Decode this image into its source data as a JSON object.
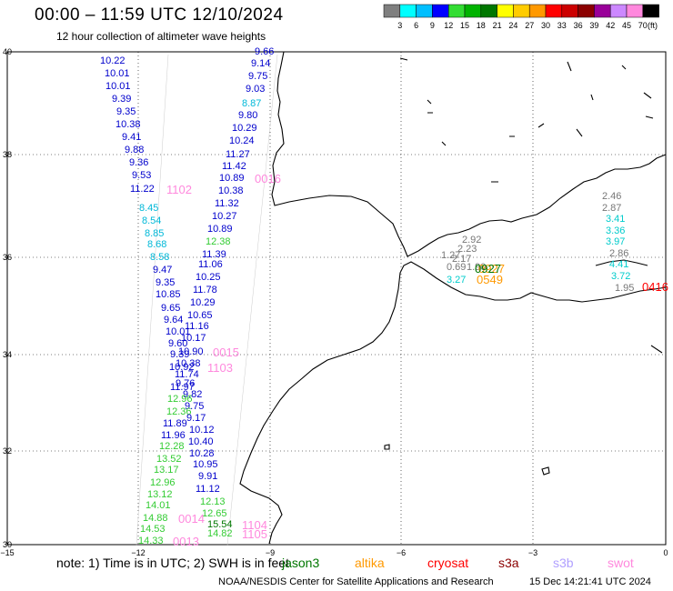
{
  "title": "00:00 – 11:59 UTC 12/10/2024",
  "subtitle": "12 hour collection of altimeter wave heights",
  "legend": {
    "unit": "(ft)",
    "bins": [
      {
        "label": "3",
        "color": "#7f7f7f"
      },
      {
        "label": "6",
        "color": "#00ffff"
      },
      {
        "label": "9",
        "color": "#00bfff"
      },
      {
        "label": "12",
        "color": "#0000ff"
      },
      {
        "label": "15",
        "color": "#33dd33"
      },
      {
        "label": "18",
        "color": "#00b300"
      },
      {
        "label": "21",
        "color": "#007700"
      },
      {
        "label": "24",
        "color": "#ffff00"
      },
      {
        "label": "27",
        "color": "#ffcc00"
      },
      {
        "label": "30",
        "color": "#ff9900"
      },
      {
        "label": "33",
        "color": "#ff0000"
      },
      {
        "label": "36",
        "color": "#cc0000"
      },
      {
        "label": "39",
        "color": "#8b0000"
      },
      {
        "label": "42",
        "color": "#990099"
      },
      {
        "label": "45",
        "color": "#cc88ff"
      },
      {
        "label": "70",
        "color": "#ff88dd"
      },
      {
        "label": "",
        "color": "#000000"
      }
    ]
  },
  "axes": {
    "lat_labels": [
      "40",
      "38",
      "36",
      "34",
      "32",
      "30"
    ],
    "lon_labels": [
      "−15",
      "−12",
      "−9",
      "−6",
      "−3",
      "0"
    ]
  },
  "note": "note:  1) Time is in UTC;  2) SWH is in feet",
  "satellites": [
    {
      "name": "jason3",
      "color": "#007700"
    },
    {
      "name": "altika",
      "color": "#ff9900"
    },
    {
      "name": "cryosat",
      "color": "#ff0000"
    },
    {
      "name": "s3a",
      "color": "#8b0000"
    },
    {
      "name": "s3b",
      "color": "#b0a0ff"
    },
    {
      "name": "swot",
      "color": "#ff88dd"
    }
  ],
  "credit": "NOAA/NESDIS Center for Satellite Applications and Research",
  "generated": "15 Dec 14:21:41 UTC 2024",
  "readings": [
    {
      "v": "9.66",
      "c": "#0000cc"
    },
    {
      "v": "10.22",
      "c": "#0000cc"
    },
    {
      "v": "9.14",
      "c": "#0000cc"
    },
    {
      "v": "10.01",
      "c": "#0000cc"
    },
    {
      "v": "9.75",
      "c": "#0000cc"
    },
    {
      "v": "10.01",
      "c": "#0000cc"
    },
    {
      "v": "9.03",
      "c": "#0000cc"
    },
    {
      "v": "9.39",
      "c": "#0000cc"
    },
    {
      "v": "8.87",
      "c": "#00b8d8"
    },
    {
      "v": "9.35",
      "c": "#0000cc"
    },
    {
      "v": "9.80",
      "c": "#0000cc"
    },
    {
      "v": "10.38",
      "c": "#0000cc"
    },
    {
      "v": "10.29",
      "c": "#0000cc"
    },
    {
      "v": "9.41",
      "c": "#0000cc"
    },
    {
      "v": "10.24",
      "c": "#0000cc"
    },
    {
      "v": "9.88",
      "c": "#0000cc"
    },
    {
      "v": "11.27",
      "c": "#0000cc"
    },
    {
      "v": "9.36",
      "c": "#0000cc"
    },
    {
      "v": "11.42",
      "c": "#0000cc"
    },
    {
      "v": "9.53",
      "c": "#0000cc"
    },
    {
      "v": "10.89",
      "c": "#0000cc"
    },
    {
      "v": "11.22",
      "c": "#0000cc"
    },
    {
      "v": "10.38",
      "c": "#0000cc"
    },
    {
      "v": "11.32",
      "c": "#0000cc"
    },
    {
      "v": "8.45",
      "c": "#00b8d8"
    },
    {
      "v": "10.27",
      "c": "#0000cc"
    },
    {
      "v": "8.54",
      "c": "#00b8d8"
    },
    {
      "v": "10.89",
      "c": "#0000cc"
    },
    {
      "v": "8.85",
      "c": "#00b8d8"
    },
    {
      "v": "12.38",
      "c": "#33cc33"
    },
    {
      "v": "8.68",
      "c": "#00b8d8"
    },
    {
      "v": "11.39",
      "c": "#0000cc"
    },
    {
      "v": "8.58",
      "c": "#00b8d8"
    },
    {
      "v": "11.06",
      "c": "#0000cc"
    },
    {
      "v": "9.47",
      "c": "#0000cc"
    },
    {
      "v": "10.25",
      "c": "#0000cc"
    },
    {
      "v": "9.35",
      "c": "#0000cc"
    },
    {
      "v": "11.78",
      "c": "#0000cc"
    },
    {
      "v": "10.85",
      "c": "#0000cc"
    },
    {
      "v": "10.29",
      "c": "#0000cc"
    },
    {
      "v": "9.65",
      "c": "#0000cc"
    },
    {
      "v": "10.65",
      "c": "#0000cc"
    },
    {
      "v": "9.64",
      "c": "#0000cc"
    },
    {
      "v": "11.16",
      "c": "#0000cc"
    },
    {
      "v": "10.01",
      "c": "#0000cc"
    },
    {
      "v": "10.17",
      "c": "#0000cc"
    },
    {
      "v": "9.60",
      "c": "#0000cc"
    },
    {
      "v": "10.90",
      "c": "#0000cc"
    },
    {
      "v": "9.39",
      "c": "#0000cc"
    },
    {
      "v": "10.38",
      "c": "#0000cc"
    },
    {
      "v": "10.92",
      "c": "#0000cc"
    },
    {
      "v": "11.74",
      "c": "#0000cc"
    },
    {
      "v": "9.76",
      "c": "#0000cc"
    },
    {
      "v": "11.97",
      "c": "#0000cc"
    },
    {
      "v": "9.82",
      "c": "#0000cc"
    },
    {
      "v": "12.96",
      "c": "#33cc33"
    },
    {
      "v": "9.75",
      "c": "#0000cc"
    },
    {
      "v": "12.36",
      "c": "#33cc33"
    },
    {
      "v": "9.17",
      "c": "#0000cc"
    },
    {
      "v": "11.89",
      "c": "#0000cc"
    },
    {
      "v": "10.12",
      "c": "#0000cc"
    },
    {
      "v": "11.96",
      "c": "#0000cc"
    },
    {
      "v": "10.40",
      "c": "#0000cc"
    },
    {
      "v": "12.28",
      "c": "#33cc33"
    },
    {
      "v": "10.28",
      "c": "#0000cc"
    },
    {
      "v": "13.52",
      "c": "#33cc33"
    },
    {
      "v": "10.95",
      "c": "#0000cc"
    },
    {
      "v": "13.17",
      "c": "#33cc33"
    },
    {
      "v": "9.91",
      "c": "#0000cc"
    },
    {
      "v": "12.96",
      "c": "#33cc33"
    },
    {
      "v": "11.12",
      "c": "#0000cc"
    },
    {
      "v": "13.12",
      "c": "#33cc33"
    },
    {
      "v": "12.13",
      "c": "#33cc33"
    },
    {
      "v": "14.01",
      "c": "#33cc33"
    },
    {
      "v": "12.65",
      "c": "#33cc33"
    },
    {
      "v": "14.88",
      "c": "#33cc33"
    },
    {
      "v": "15.54",
      "c": "#007700"
    },
    {
      "v": "14.53",
      "c": "#33cc33"
    },
    {
      "v": "14.82",
      "c": "#33cc33"
    },
    {
      "v": "14.33",
      "c": "#33cc33"
    },
    {
      "v": "2.46",
      "c": "#777777"
    },
    {
      "v": "2.87",
      "c": "#777777"
    },
    {
      "v": "3.41",
      "c": "#00cccc"
    },
    {
      "v": "3.36",
      "c": "#00cccc"
    },
    {
      "v": "3.97",
      "c": "#00cccc"
    },
    {
      "v": "2.86",
      "c": "#777777"
    },
    {
      "v": "4.41",
      "c": "#00cccc"
    },
    {
      "v": "3.72",
      "c": "#00cccc"
    },
    {
      "v": "1.95",
      "c": "#777777"
    },
    {
      "v": "2.92",
      "c": "#777777"
    },
    {
      "v": "2.23",
      "c": "#777777"
    },
    {
      "v": "1.27",
      "c": "#777777"
    },
    {
      "v": "2.17",
      "c": "#777777"
    },
    {
      "v": "0.69",
      "c": "#777777"
    },
    {
      "v": "1.90",
      "c": "#777777"
    },
    {
      "v": "3.27",
      "c": "#00cccc"
    }
  ],
  "pass_times": [
    {
      "t": "0016",
      "c": "#ff88dd"
    },
    {
      "t": "1102",
      "c": "#ff88dd"
    },
    {
      "t": "0015",
      "c": "#ff88dd"
    },
    {
      "t": "1103",
      "c": "#ff88dd"
    },
    {
      "t": "0014",
      "c": "#ff88dd"
    },
    {
      "t": "0013",
      "c": "#ff88dd"
    },
    {
      "t": "1104",
      "c": "#ff88dd"
    },
    {
      "t": "1105",
      "c": "#ff88dd"
    },
    {
      "t": "0927",
      "c": "#ff9900"
    },
    {
      "t": "0549",
      "c": "#ff9900"
    },
    {
      "t": "0416",
      "c": "#ff0000"
    },
    {
      "t": "0927",
      "c": "#007700"
    }
  ]
}
